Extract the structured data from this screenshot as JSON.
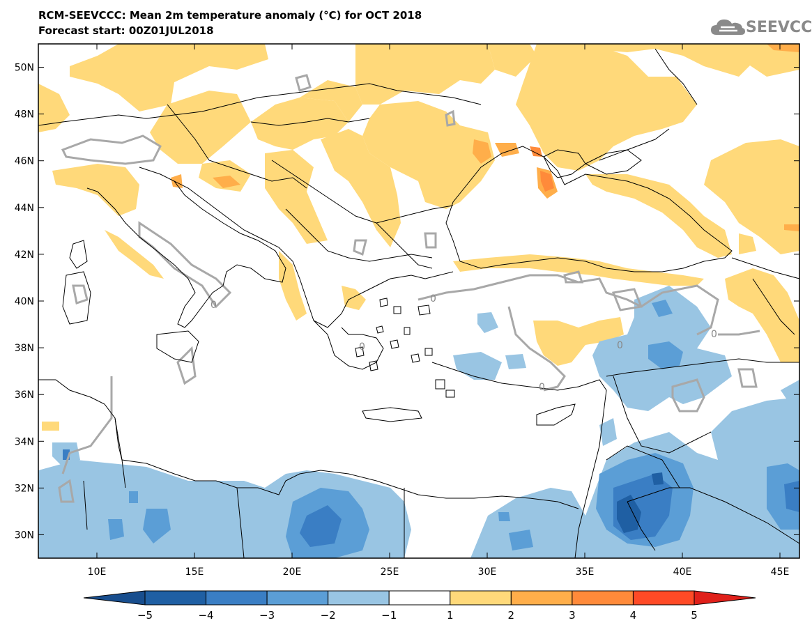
{
  "header": {
    "title_line1": "RCM-SEEVCCC: Mean 2m temperature anomaly (°C) for OCT 2018",
    "title_line2": "Forecast start: 00Z01JUL2018",
    "logo_text": "SEEVCCC"
  },
  "map": {
    "x_ticks": [
      {
        "value": 10,
        "label": "10E"
      },
      {
        "value": 15,
        "label": "15E"
      },
      {
        "value": 20,
        "label": "20E"
      },
      {
        "value": 25,
        "label": "25E"
      },
      {
        "value": 30,
        "label": "30E"
      },
      {
        "value": 35,
        "label": "35E"
      },
      {
        "value": 40,
        "label": "40E"
      },
      {
        "value": 45,
        "label": "45E"
      }
    ],
    "y_ticks": [
      {
        "value": 50,
        "label": "50N"
      },
      {
        "value": 48,
        "label": "48N"
      },
      {
        "value": 46,
        "label": "46N"
      },
      {
        "value": 44,
        "label": "44N"
      },
      {
        "value": 42,
        "label": "42N"
      },
      {
        "value": 40,
        "label": "40N"
      },
      {
        "value": 38,
        "label": "38N"
      },
      {
        "value": 36,
        "label": "36N"
      },
      {
        "value": 34,
        "label": "34N"
      },
      {
        "value": 32,
        "label": "32N"
      },
      {
        "value": 30,
        "label": "30N"
      }
    ],
    "lon_range": [
      7.0,
      46.0
    ],
    "lat_range": [
      29.0,
      51.0
    ],
    "contour_label": "0"
  },
  "colorbar": {
    "colors": [
      "#1f5fa3",
      "#3a7ec4",
      "#5b9ed6",
      "#99c5e3",
      "#ffffff",
      "#ffd97a",
      "#ffae4a",
      "#ff8a3a",
      "#ff4a26"
    ],
    "end_low": "#184e8e",
    "end_high": "#e0201a",
    "labels": [
      "−5",
      "−4",
      "−3",
      "−2",
      "−1",
      "1",
      "2",
      "3",
      "4",
      "5"
    ]
  },
  "legend_colors": {
    "warm1": "#ffd97a",
    "warm2": "#ffae4a",
    "warm3": "#ff8a3a",
    "cold1": "#99c5e3",
    "cold2": "#5b9ed6",
    "cold3": "#3a7ec4",
    "cold4": "#1f5fa3"
  }
}
